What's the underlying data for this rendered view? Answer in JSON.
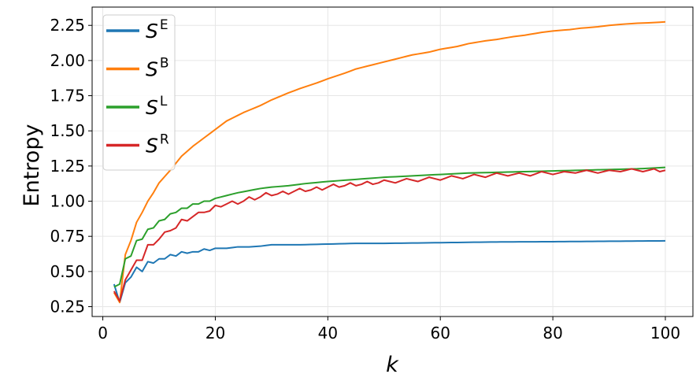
{
  "chart_data": {
    "type": "line",
    "title": "",
    "xlabel": "k",
    "ylabel": "Entropy",
    "xlim": [
      -1.9,
      104.9
    ],
    "ylim": [
      0.18,
      2.38
    ],
    "xticks": [
      0,
      20,
      40,
      60,
      80,
      100
    ],
    "xtick_labels": [
      "0",
      "20",
      "40",
      "60",
      "80",
      "100"
    ],
    "yticks": [
      0.25,
      0.5,
      0.75,
      1.0,
      1.25,
      1.5,
      1.75,
      2.0,
      2.25
    ],
    "ytick_labels": [
      "0.25",
      "0.50",
      "0.75",
      "1.00",
      "1.25",
      "1.50",
      "1.75",
      "2.00",
      "2.25"
    ],
    "grid": true,
    "legend_position": "upper-left",
    "k_min": 2,
    "k_max": 100,
    "series": [
      {
        "name": "S^E",
        "base": "S",
        "sup": "E",
        "color": "#1f77b4",
        "points": [
          [
            2,
            0.41
          ],
          [
            3,
            0.28
          ],
          [
            4,
            0.42
          ],
          [
            5,
            0.46
          ],
          [
            6,
            0.53
          ],
          [
            7,
            0.5
          ],
          [
            8,
            0.57
          ],
          [
            9,
            0.56
          ],
          [
            10,
            0.59
          ],
          [
            11,
            0.59
          ],
          [
            12,
            0.62
          ],
          [
            13,
            0.61
          ],
          [
            14,
            0.64
          ],
          [
            15,
            0.63
          ],
          [
            16,
            0.64
          ],
          [
            17,
            0.64
          ],
          [
            18,
            0.66
          ],
          [
            19,
            0.65
          ],
          [
            20,
            0.665
          ],
          [
            22,
            0.665
          ],
          [
            24,
            0.675
          ],
          [
            26,
            0.675
          ],
          [
            28,
            0.68
          ],
          [
            30,
            0.69
          ],
          [
            35,
            0.69
          ],
          [
            40,
            0.695
          ],
          [
            45,
            0.7
          ],
          [
            50,
            0.7
          ],
          [
            60,
            0.705
          ],
          [
            70,
            0.71
          ],
          [
            80,
            0.712
          ],
          [
            90,
            0.715
          ],
          [
            100,
            0.718
          ]
        ]
      },
      {
        "name": "S^B",
        "base": "S",
        "sup": "B",
        "color": "#ff7f0e",
        "points": [
          [
            2,
            0.35
          ],
          [
            3,
            0.28
          ],
          [
            4,
            0.62
          ],
          [
            5,
            0.72
          ],
          [
            6,
            0.85
          ],
          [
            7,
            0.92
          ],
          [
            8,
            1.0
          ],
          [
            9,
            1.06
          ],
          [
            10,
            1.13
          ],
          [
            12,
            1.22
          ],
          [
            14,
            1.32
          ],
          [
            16,
            1.39
          ],
          [
            18,
            1.45
          ],
          [
            20,
            1.51
          ],
          [
            22,
            1.57
          ],
          [
            25,
            1.63
          ],
          [
            28,
            1.68
          ],
          [
            30,
            1.72
          ],
          [
            33,
            1.77
          ],
          [
            35,
            1.8
          ],
          [
            38,
            1.84
          ],
          [
            40,
            1.87
          ],
          [
            43,
            1.91
          ],
          [
            45,
            1.94
          ],
          [
            48,
            1.97
          ],
          [
            50,
            1.99
          ],
          [
            53,
            2.02
          ],
          [
            55,
            2.04
          ],
          [
            58,
            2.06
          ],
          [
            60,
            2.08
          ],
          [
            63,
            2.1
          ],
          [
            65,
            2.12
          ],
          [
            68,
            2.14
          ],
          [
            70,
            2.15
          ],
          [
            73,
            2.17
          ],
          [
            75,
            2.18
          ],
          [
            78,
            2.2
          ],
          [
            80,
            2.21
          ],
          [
            83,
            2.22
          ],
          [
            85,
            2.23
          ],
          [
            88,
            2.24
          ],
          [
            90,
            2.25
          ],
          [
            93,
            2.26
          ],
          [
            95,
            2.265
          ],
          [
            98,
            2.27
          ],
          [
            100,
            2.275
          ]
        ]
      },
      {
        "name": "S^L",
        "base": "S",
        "sup": "L",
        "color": "#2ca02c",
        "points": [
          [
            2,
            0.39
          ],
          [
            3,
            0.41
          ],
          [
            4,
            0.59
          ],
          [
            5,
            0.61
          ],
          [
            6,
            0.72
          ],
          [
            7,
            0.73
          ],
          [
            8,
            0.8
          ],
          [
            9,
            0.81
          ],
          [
            10,
            0.86
          ],
          [
            11,
            0.87
          ],
          [
            12,
            0.91
          ],
          [
            13,
            0.92
          ],
          [
            14,
            0.95
          ],
          [
            15,
            0.95
          ],
          [
            16,
            0.98
          ],
          [
            17,
            0.98
          ],
          [
            18,
            1.0
          ],
          [
            19,
            1.0
          ],
          [
            20,
            1.02
          ],
          [
            22,
            1.04
          ],
          [
            24,
            1.06
          ],
          [
            26,
            1.075
          ],
          [
            28,
            1.09
          ],
          [
            30,
            1.1
          ],
          [
            33,
            1.11
          ],
          [
            36,
            1.125
          ],
          [
            40,
            1.14
          ],
          [
            45,
            1.155
          ],
          [
            50,
            1.17
          ],
          [
            55,
            1.18
          ],
          [
            60,
            1.19
          ],
          [
            65,
            1.2
          ],
          [
            70,
            1.205
          ],
          [
            75,
            1.21
          ],
          [
            80,
            1.215
          ],
          [
            85,
            1.22
          ],
          [
            90,
            1.225
          ],
          [
            95,
            1.23
          ],
          [
            100,
            1.24
          ]
        ]
      },
      {
        "name": "S^R",
        "base": "S",
        "sup": "R",
        "color": "#d62728",
        "points": [
          [
            2,
            0.36
          ],
          [
            3,
            0.29
          ],
          [
            4,
            0.44
          ],
          [
            5,
            0.51
          ],
          [
            6,
            0.58
          ],
          [
            7,
            0.58
          ],
          [
            8,
            0.69
          ],
          [
            9,
            0.69
          ],
          [
            10,
            0.73
          ],
          [
            11,
            0.78
          ],
          [
            12,
            0.79
          ],
          [
            13,
            0.81
          ],
          [
            14,
            0.87
          ],
          [
            15,
            0.86
          ],
          [
            16,
            0.89
          ],
          [
            17,
            0.92
          ],
          [
            18,
            0.92
          ],
          [
            19,
            0.93
          ],
          [
            20,
            0.97
          ],
          [
            21,
            0.96
          ],
          [
            22,
            0.98
          ],
          [
            23,
            1.0
          ],
          [
            24,
            0.98
          ],
          [
            25,
            1.0
          ],
          [
            26,
            1.03
          ],
          [
            27,
            1.01
          ],
          [
            28,
            1.03
          ],
          [
            29,
            1.06
          ],
          [
            30,
            1.04
          ],
          [
            31,
            1.05
          ],
          [
            32,
            1.07
          ],
          [
            33,
            1.05
          ],
          [
            34,
            1.07
          ],
          [
            35,
            1.09
          ],
          [
            36,
            1.07
          ],
          [
            37,
            1.08
          ],
          [
            38,
            1.1
          ],
          [
            39,
            1.08
          ],
          [
            40,
            1.1
          ],
          [
            41,
            1.12
          ],
          [
            42,
            1.1
          ],
          [
            43,
            1.11
          ],
          [
            44,
            1.13
          ],
          [
            45,
            1.11
          ],
          [
            46,
            1.12
          ],
          [
            47,
            1.14
          ],
          [
            48,
            1.12
          ],
          [
            49,
            1.13
          ],
          [
            50,
            1.15
          ],
          [
            52,
            1.13
          ],
          [
            54,
            1.16
          ],
          [
            56,
            1.14
          ],
          [
            58,
            1.17
          ],
          [
            60,
            1.15
          ],
          [
            62,
            1.18
          ],
          [
            64,
            1.16
          ],
          [
            66,
            1.19
          ],
          [
            68,
            1.17
          ],
          [
            70,
            1.2
          ],
          [
            72,
            1.18
          ],
          [
            74,
            1.2
          ],
          [
            76,
            1.18
          ],
          [
            78,
            1.21
          ],
          [
            80,
            1.19
          ],
          [
            82,
            1.21
          ],
          [
            84,
            1.2
          ],
          [
            86,
            1.22
          ],
          [
            88,
            1.2
          ],
          [
            90,
            1.22
          ],
          [
            92,
            1.21
          ],
          [
            94,
            1.23
          ],
          [
            96,
            1.21
          ],
          [
            98,
            1.23
          ],
          [
            99,
            1.21
          ],
          [
            100,
            1.22
          ]
        ]
      }
    ]
  }
}
